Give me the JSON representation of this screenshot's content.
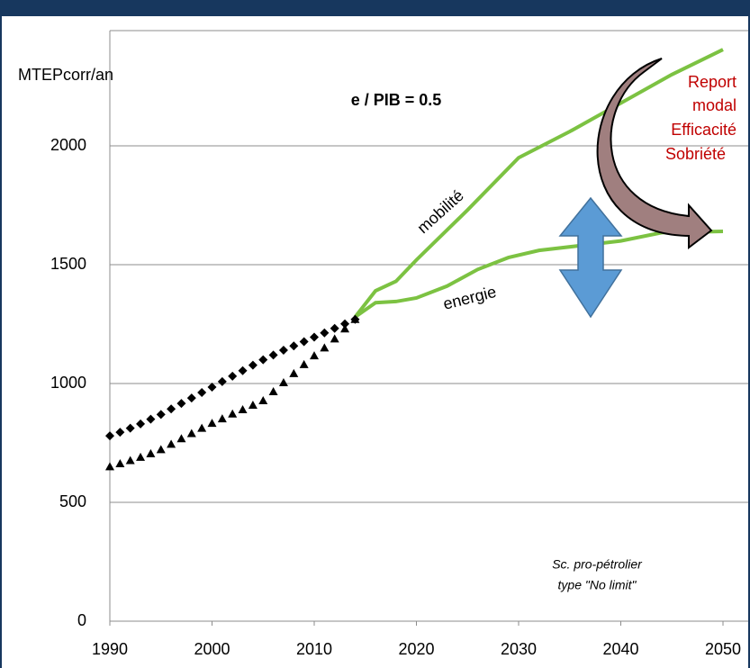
{
  "chart_data": {
    "type": "line",
    "ylabel": "MTEPcorr/an",
    "xlim": [
      1990,
      2050
    ],
    "xticks": [
      1990,
      2000,
      2010,
      2020,
      2030,
      2040,
      2050
    ],
    "ylim": [
      0,
      2500
    ],
    "yticks": [
      0,
      500,
      1000,
      1500,
      2000
    ],
    "grid": true,
    "annotations": [
      "e / PIB = 0.5",
      "mobilité",
      "energie",
      "Report",
      "modal",
      "Efficacité",
      "Sobriété",
      "Sc. pro-pétrolier",
      "type \"No limit\""
    ],
    "series": [
      {
        "marker": "diamond",
        "color": "#000000",
        "x": [
          1990,
          1991,
          1992,
          1993,
          1994,
          1995,
          1996,
          1997,
          1998,
          1999,
          2000,
          2001,
          2002,
          2003,
          2004,
          2005,
          2006,
          2007,
          2008,
          2009,
          2010,
          2011,
          2012,
          2013,
          2014
        ],
        "values": [
          780,
          795,
          812,
          830,
          850,
          870,
          893,
          916,
          939,
          962,
          985,
          1008,
          1031,
          1054,
          1077,
          1100,
          1120,
          1140,
          1158,
          1176,
          1195,
          1213,
          1232,
          1251,
          1270
        ]
      },
      {
        "marker": "triangle",
        "color": "#000000",
        "x": [
          1990,
          1991,
          1992,
          1993,
          1994,
          1995,
          1996,
          1997,
          1998,
          1999,
          2000,
          2001,
          2002,
          2003,
          2004,
          2005,
          2006,
          2007,
          2008,
          2009,
          2010,
          2011,
          2012,
          2013,
          2014
        ],
        "values": [
          650,
          663,
          676,
          690,
          705,
          722,
          745,
          768,
          790,
          812,
          833,
          852,
          872,
          890,
          909,
          928,
          966,
          1004,
          1042,
          1080,
          1117,
          1150,
          1188,
          1230,
          1270
        ]
      },
      {
        "marker": "none",
        "color": "#7cc242",
        "x": [
          2014,
          2016,
          2018,
          2020,
          2025,
          2030,
          2035,
          2040,
          2045,
          2050
        ],
        "values": [
          1280,
          1390,
          1430,
          1520,
          1730,
          1950,
          2060,
          2180,
          2300,
          2405
        ]
      },
      {
        "marker": "none",
        "color": "#7cc242",
        "x": [
          2014,
          2016,
          2018,
          2020,
          2023,
          2026,
          2029,
          2032,
          2036,
          2040,
          2044,
          2050
        ],
        "values": [
          1280,
          1340,
          1345,
          1360,
          1410,
          1480,
          1530,
          1560,
          1580,
          1600,
          1635,
          1640
        ]
      }
    ]
  }
}
